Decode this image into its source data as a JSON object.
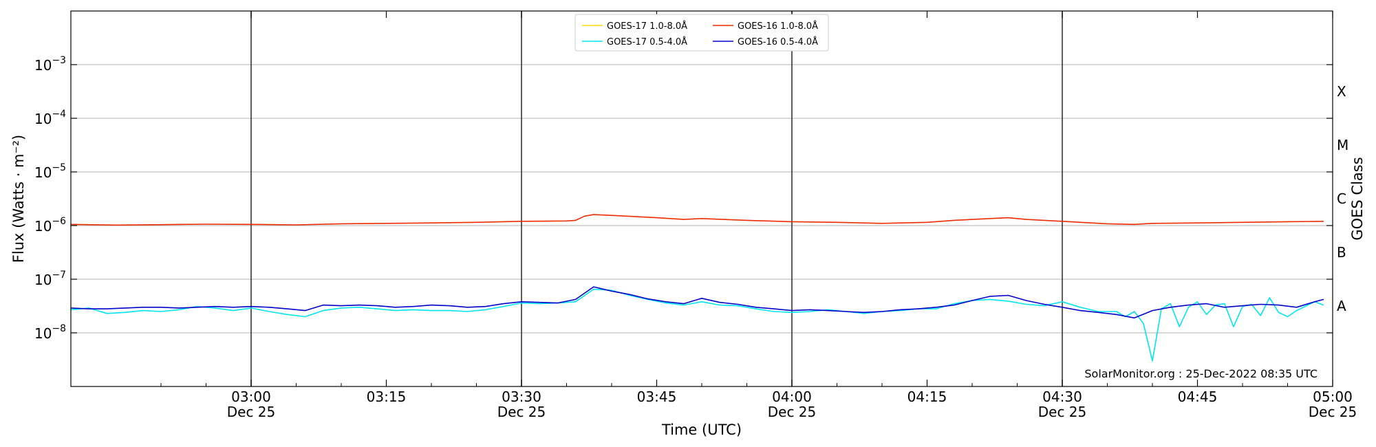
{
  "chart_data": {
    "type": "line",
    "xlabel": "Time (UTC)",
    "ylabel": "Flux (Watts · m⁻²)",
    "ylabel2": "GOES Class",
    "y_scale": "log",
    "ylim": [
      1e-09,
      0.01
    ],
    "xlim": [
      "02:40",
      "05:00"
    ],
    "grid": "horizontal",
    "legend_position": "top-center",
    "watermark": "SolarMonitor.org : 25-Dec-2022 08:35 UTC",
    "x_ticks": [
      {
        "time": "03:00",
        "date": "Dec 25"
      },
      {
        "time": "03:15",
        "date": ""
      },
      {
        "time": "03:30",
        "date": "Dec 25"
      },
      {
        "time": "03:45",
        "date": ""
      },
      {
        "time": "04:00",
        "date": "Dec 25"
      },
      {
        "time": "04:15",
        "date": ""
      },
      {
        "time": "04:30",
        "date": "Dec 25"
      },
      {
        "time": "04:45",
        "date": ""
      },
      {
        "time": "05:00",
        "date": "Dec 25"
      }
    ],
    "vertical_markers": [
      "03:00",
      "03:30",
      "04:00",
      "04:30"
    ],
    "y_ticks": [
      {
        "value": 1e-08,
        "base": "10",
        "exp": "−8"
      },
      {
        "value": 1e-07,
        "base": "10",
        "exp": "−7"
      },
      {
        "value": 1e-06,
        "base": "10",
        "exp": "−6"
      },
      {
        "value": 1e-05,
        "base": "10",
        "exp": "−5"
      },
      {
        "value": 0.0001,
        "base": "10",
        "exp": "−4"
      },
      {
        "value": 0.001,
        "base": "10",
        "exp": "−3"
      }
    ],
    "goes_classes": [
      {
        "label": "A",
        "value": 1e-08
      },
      {
        "label": "B",
        "value": 1e-07
      },
      {
        "label": "C",
        "value": 1e-06
      },
      {
        "label": "M",
        "value": 1e-05
      },
      {
        "label": "X",
        "value": 0.0001
      }
    ],
    "series": [
      {
        "name": "GOES-17 1.0-8.0Å",
        "color": "#ffd700",
        "x": [],
        "values": []
      },
      {
        "name": "GOES-17 0.5-4.0Å",
        "color": "#00e5ee",
        "x": [
          "02:40",
          "02:42",
          "02:44",
          "02:46",
          "02:48",
          "02:50",
          "02:52",
          "02:54",
          "02:56",
          "02:58",
          "03:00",
          "03:02",
          "03:04",
          "03:06",
          "03:08",
          "03:10",
          "03:12",
          "03:14",
          "03:16",
          "03:18",
          "03:20",
          "03:22",
          "03:24",
          "03:26",
          "03:28",
          "03:30",
          "03:32",
          "03:34",
          "03:36",
          "03:38",
          "03:40",
          "03:42",
          "03:44",
          "03:46",
          "03:48",
          "03:50",
          "03:52",
          "03:54",
          "03:56",
          "03:58",
          "04:00",
          "04:02",
          "04:04",
          "04:06",
          "04:08",
          "04:10",
          "04:12",
          "04:14",
          "04:16",
          "04:18",
          "04:20",
          "04:22",
          "04:24",
          "04:26",
          "04:28",
          "04:30",
          "04:32",
          "04:34",
          "04:36",
          "04:37",
          "04:38",
          "04:39",
          "04:40",
          "04:41",
          "04:42",
          "04:43",
          "04:44",
          "04:45",
          "04:46",
          "04:47",
          "04:48",
          "04:49",
          "04:50",
          "04:51",
          "04:52",
          "04:53",
          "04:54",
          "04:55",
          "04:56",
          "04:58",
          "04:59"
        ],
        "values": [
          2.7e-08,
          2.9e-08,
          2.3e-08,
          2.4e-08,
          2.6e-08,
          2.5e-08,
          2.7e-08,
          3.1e-08,
          2.9e-08,
          2.6e-08,
          2.9e-08,
          2.5e-08,
          2.2e-08,
          2e-08,
          2.6e-08,
          2.9e-08,
          3e-08,
          2.8e-08,
          2.6e-08,
          2.7e-08,
          2.6e-08,
          2.6e-08,
          2.5e-08,
          2.7e-08,
          3.1e-08,
          3.6e-08,
          3.5e-08,
          3.6e-08,
          3.8e-08,
          6.5e-08,
          6.2e-08,
          5e-08,
          4.2e-08,
          3.6e-08,
          3.3e-08,
          3.8e-08,
          3.3e-08,
          3.2e-08,
          2.8e-08,
          2.5e-08,
          2.4e-08,
          2.5e-08,
          2.7e-08,
          2.5e-08,
          2.3e-08,
          2.5e-08,
          2.6e-08,
          2.8e-08,
          2.8e-08,
          3.5e-08,
          4e-08,
          4.2e-08,
          3.9e-08,
          3.4e-08,
          3.2e-08,
          3.8e-08,
          3e-08,
          2.5e-08,
          2.5e-08,
          2e-08,
          2.5e-08,
          1.5e-08,
          3e-09,
          2.8e-08,
          3.5e-08,
          1.3e-08,
          3e-08,
          3.8e-08,
          2.2e-08,
          3.3e-08,
          3.5e-08,
          1.3e-08,
          3.1e-08,
          3.4e-08,
          2.1e-08,
          4.5e-08,
          2.4e-08,
          2e-08,
          2.6e-08,
          3.8e-08,
          3.3e-08
        ]
      },
      {
        "name": "GOES-16 1.0-8.0Å",
        "color": "#ee2c00",
        "x": [
          "02:40",
          "02:45",
          "02:50",
          "02:55",
          "03:00",
          "03:05",
          "03:10",
          "03:15",
          "03:20",
          "03:25",
          "03:30",
          "03:35",
          "03:36",
          "03:37",
          "03:38",
          "03:40",
          "03:45",
          "03:48",
          "03:50",
          "03:55",
          "04:00",
          "04:05",
          "04:10",
          "04:15",
          "04:18",
          "04:20",
          "04:22",
          "04:24",
          "04:26",
          "04:30",
          "04:35",
          "04:38",
          "04:40",
          "04:45",
          "04:50",
          "04:55",
          "04:59"
        ],
        "values": [
          1.05e-06,
          1.02e-06,
          1.04e-06,
          1.06e-06,
          1.05e-06,
          1.03e-06,
          1.08e-06,
          1.1e-06,
          1.12e-06,
          1.15e-06,
          1.2e-06,
          1.22e-06,
          1.25e-06,
          1.5e-06,
          1.6e-06,
          1.55e-06,
          1.4e-06,
          1.3e-06,
          1.35e-06,
          1.25e-06,
          1.18e-06,
          1.15e-06,
          1.1e-06,
          1.15e-06,
          1.25e-06,
          1.3e-06,
          1.35e-06,
          1.4e-06,
          1.3e-06,
          1.2e-06,
          1.08e-06,
          1.05e-06,
          1.1e-06,
          1.12e-06,
          1.15e-06,
          1.18e-06,
          1.2e-06
        ]
      },
      {
        "name": "GOES-16 0.5-4.0Å",
        "color": "#0000cd",
        "x": [
          "02:40",
          "02:42",
          "02:44",
          "02:46",
          "02:48",
          "02:50",
          "02:52",
          "02:54",
          "02:56",
          "02:58",
          "03:00",
          "03:02",
          "03:04",
          "03:06",
          "03:08",
          "03:10",
          "03:12",
          "03:14",
          "03:16",
          "03:18",
          "03:20",
          "03:22",
          "03:24",
          "03:26",
          "03:28",
          "03:30",
          "03:32",
          "03:34",
          "03:36",
          "03:38",
          "03:40",
          "03:42",
          "03:44",
          "03:46",
          "03:48",
          "03:50",
          "03:52",
          "03:54",
          "03:56",
          "03:58",
          "04:00",
          "04:02",
          "04:04",
          "04:06",
          "04:08",
          "04:10",
          "04:12",
          "04:14",
          "04:16",
          "04:18",
          "04:20",
          "04:22",
          "04:24",
          "04:26",
          "04:28",
          "04:30",
          "04:32",
          "04:34",
          "04:36",
          "04:38",
          "04:40",
          "04:42",
          "04:44",
          "04:46",
          "04:48",
          "04:50",
          "04:52",
          "04:54",
          "04:56",
          "04:58",
          "04:59"
        ],
        "values": [
          2.9e-08,
          2.8e-08,
          2.8e-08,
          2.9e-08,
          3e-08,
          3e-08,
          2.9e-08,
          3e-08,
          3.1e-08,
          3e-08,
          3.1e-08,
          3e-08,
          2.8e-08,
          2.6e-08,
          3.3e-08,
          3.2e-08,
          3.3e-08,
          3.2e-08,
          3e-08,
          3.1e-08,
          3.3e-08,
          3.2e-08,
          3e-08,
          3.1e-08,
          3.5e-08,
          3.8e-08,
          3.7e-08,
          3.6e-08,
          4.2e-08,
          7.2e-08,
          6e-08,
          5.2e-08,
          4.3e-08,
          3.8e-08,
          3.5e-08,
          4.4e-08,
          3.7e-08,
          3.4e-08,
          3e-08,
          2.8e-08,
          2.6e-08,
          2.7e-08,
          2.6e-08,
          2.5e-08,
          2.4e-08,
          2.5e-08,
          2.7e-08,
          2.8e-08,
          3e-08,
          3.3e-08,
          4e-08,
          4.8e-08,
          5e-08,
          4e-08,
          3.4e-08,
          3e-08,
          2.6e-08,
          2.4e-08,
          2.2e-08,
          1.9e-08,
          2.6e-08,
          3e-08,
          3.3e-08,
          3.5e-08,
          3e-08,
          3.2e-08,
          3.4e-08,
          3.3e-08,
          3e-08,
          3.8e-08,
          4.2e-08
        ]
      }
    ]
  }
}
